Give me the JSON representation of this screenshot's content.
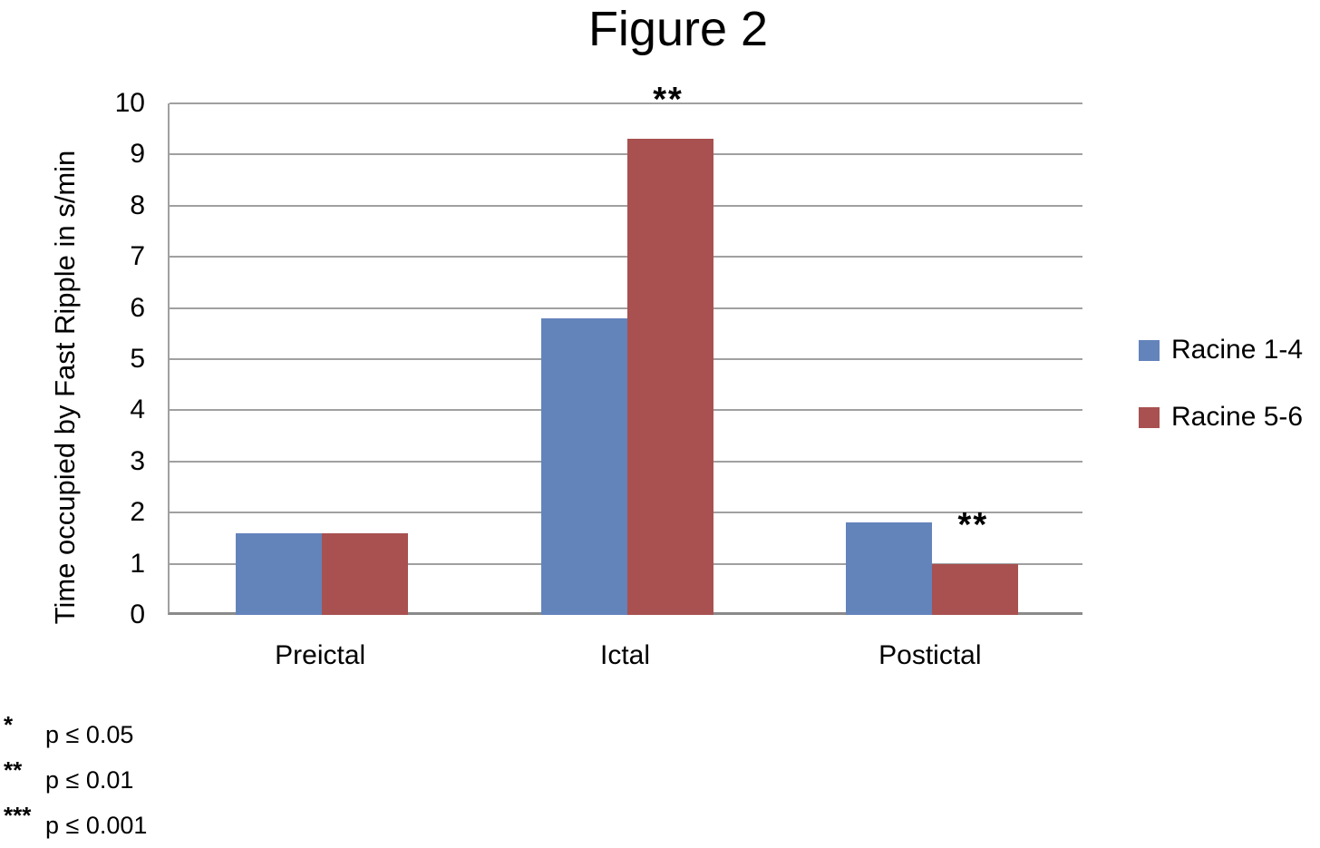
{
  "chart_data": {
    "type": "bar",
    "title": "Figure 2",
    "categories": [
      "Preictal",
      "Ictal",
      "Postictal"
    ],
    "series": [
      {
        "name": "Racine 1-4",
        "color": "#6383BB",
        "values": [
          1.6,
          5.8,
          1.8
        ]
      },
      {
        "name": "Racine 5-6",
        "color": "#A85150",
        "values": [
          1.6,
          9.3,
          1.0
        ]
      }
    ],
    "xlabel": "",
    "ylabel": "Time occupied by Fast Ripple in s/min",
    "ylim": [
      0,
      10
    ],
    "ytick_step": 1,
    "ytick_labels": [
      "0",
      "1",
      "2",
      "3",
      "4",
      "5",
      "6",
      "7",
      "8",
      "9",
      "10"
    ],
    "grid": true,
    "gridline_color": "#A0A0A0",
    "axis_color": "#8A8A8A",
    "legend_position": "right",
    "annotations": [
      {
        "text": "**",
        "category": "Ictal",
        "series": "Racine 5-6"
      },
      {
        "text": "**",
        "category": "Postictal",
        "series": "Racine 5-6"
      }
    ]
  },
  "footnotes": [
    {
      "marker": "*",
      "text": "p ≤ 0.05"
    },
    {
      "marker": "**",
      "text": "p ≤ 0.01"
    },
    {
      "marker": "***",
      "text": "p ≤ 0.001"
    }
  ]
}
